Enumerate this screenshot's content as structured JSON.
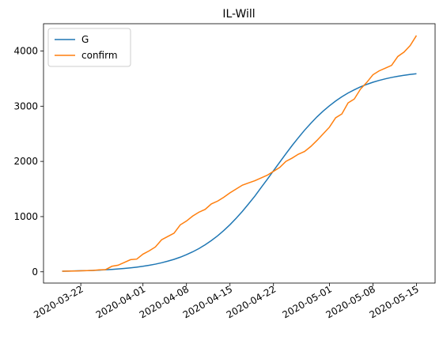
{
  "chart_data": {
    "type": "line",
    "title": "IL-Will",
    "x": [
      "2020-03-19",
      "2020-03-20",
      "2020-03-21",
      "2020-03-22",
      "2020-03-23",
      "2020-03-24",
      "2020-03-25",
      "2020-03-26",
      "2020-03-27",
      "2020-03-28",
      "2020-03-29",
      "2020-03-30",
      "2020-03-31",
      "2020-04-01",
      "2020-04-02",
      "2020-04-03",
      "2020-04-04",
      "2020-04-05",
      "2020-04-06",
      "2020-04-07",
      "2020-04-08",
      "2020-04-09",
      "2020-04-10",
      "2020-04-11",
      "2020-04-12",
      "2020-04-13",
      "2020-04-14",
      "2020-04-15",
      "2020-04-16",
      "2020-04-17",
      "2020-04-18",
      "2020-04-19",
      "2020-04-20",
      "2020-04-21",
      "2020-04-22",
      "2020-04-23",
      "2020-04-24",
      "2020-04-25",
      "2020-04-26",
      "2020-04-27",
      "2020-04-28",
      "2020-04-29",
      "2020-04-30",
      "2020-05-01",
      "2020-05-02",
      "2020-05-03",
      "2020-05-04",
      "2020-05-05",
      "2020-05-06",
      "2020-05-07",
      "2020-05-08",
      "2020-05-09",
      "2020-05-10",
      "2020-05-11",
      "2020-05-12",
      "2020-05-13",
      "2020-05-14",
      "2020-05-15"
    ],
    "series": [
      {
        "name": "G",
        "color": "#1f77b4",
        "values": [
          11,
          13,
          16,
          19,
          22,
          26,
          31,
          37,
          44,
          52,
          61,
          72,
          85,
          100,
          118,
          139,
          164,
          193,
          226,
          265,
          310,
          362,
          421,
          489,
          566,
          651,
          747,
          853,
          971,
          1096,
          1232,
          1371,
          1525,
          1675,
          1830,
          1985,
          2138,
          2288,
          2429,
          2565,
          2689,
          2807,
          2912,
          3007,
          3094,
          3171,
          3239,
          3297,
          3350,
          3395,
          3434,
          3467,
          3496,
          3521,
          3542,
          3560,
          3575,
          3588
        ]
      },
      {
        "name": "confirm",
        "color": "#ff7f0e",
        "values": [
          10,
          12,
          15,
          18,
          22,
          25,
          35,
          40,
          100,
          120,
          170,
          220,
          230,
          320,
          380,
          450,
          580,
          640,
          700,
          850,
          920,
          1010,
          1080,
          1130,
          1230,
          1280,
          1350,
          1430,
          1500,
          1570,
          1610,
          1650,
          1700,
          1750,
          1820,
          1890,
          2000,
          2060,
          2130,
          2180,
          2270,
          2380,
          2500,
          2620,
          2790,
          2860,
          3060,
          3130,
          3310,
          3430,
          3570,
          3640,
          3690,
          3740,
          3900,
          3980,
          4100,
          4280
        ]
      }
    ],
    "xlim": [
      "2020-03-16",
      "2020-05-18"
    ],
    "xticks": [
      "2020-03-22",
      "2020-04-01",
      "2020-04-08",
      "2020-04-15",
      "2020-04-22",
      "2020-05-01",
      "2020-05-08",
      "2020-05-15"
    ],
    "ylim": [
      -204,
      4494
    ],
    "yticks": [
      0,
      1000,
      2000,
      3000,
      4000
    ],
    "legend": "upper left"
  }
}
